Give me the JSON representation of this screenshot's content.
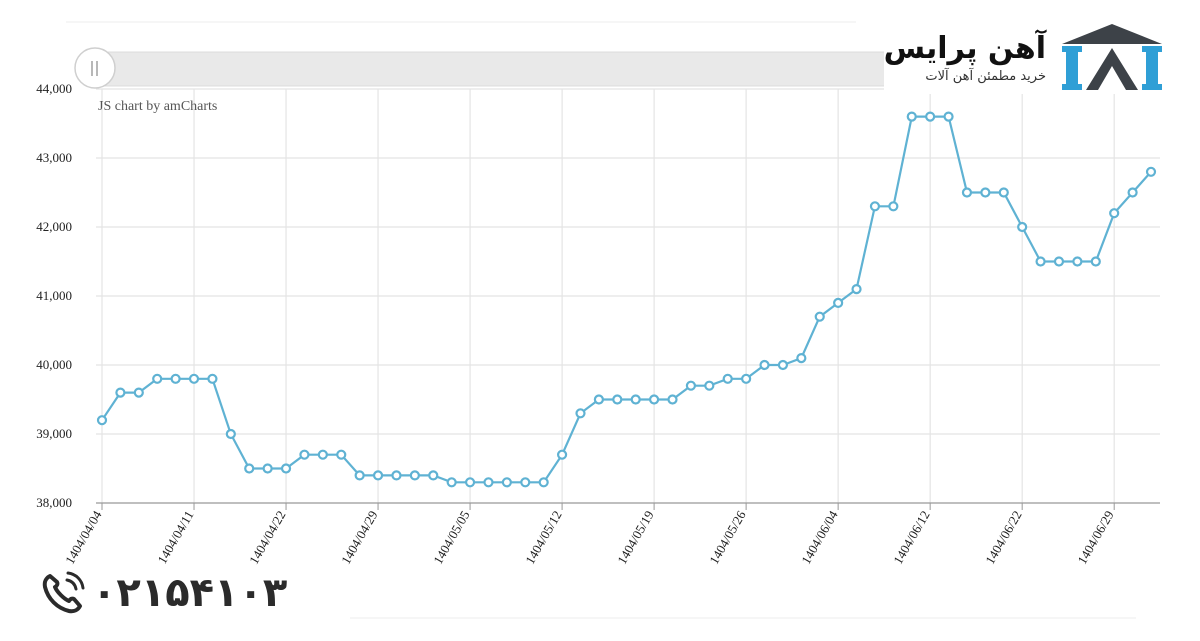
{
  "brand": {
    "name": "آهن پرایس",
    "tagline": "خرید مطمئن آهن آلات"
  },
  "phone": {
    "number": "۰۲۱۵۴۱۰۳"
  },
  "chart_data": {
    "type": "line",
    "credit": "JS chart by amCharts",
    "ylim": [
      38000,
      44000
    ],
    "yticks": [
      "38,000",
      "39,000",
      "40,000",
      "41,000",
      "42,000",
      "43,000",
      "44,000"
    ],
    "xtick_labels": [
      "1404/04/04",
      "1404/04/11",
      "1404/04/22",
      "1404/04/29",
      "1404/05/05",
      "1404/05/12",
      "1404/05/19",
      "1404/05/26",
      "1404/06/04",
      "1404/06/12",
      "1404/06/22",
      "1404/06/29"
    ],
    "xtick_indices": [
      0,
      5,
      10,
      15,
      20,
      25,
      30,
      35,
      40,
      45,
      50,
      55
    ],
    "grid": true,
    "series": [
      {
        "color": "#5fb2d3",
        "values": [
          39200,
          39600,
          39600,
          39800,
          39800,
          39800,
          39800,
          39000,
          38500,
          38500,
          38500,
          38700,
          38700,
          38700,
          38400,
          38400,
          38400,
          38400,
          38400,
          38300,
          38300,
          38300,
          38300,
          38300,
          38300,
          38700,
          39300,
          39500,
          39500,
          39500,
          39500,
          39500,
          39700,
          39700,
          39800,
          39800,
          40000,
          40000,
          40100,
          40700,
          40900,
          41100,
          42300,
          42300,
          43600,
          43600,
          43600,
          42500,
          42500,
          42500,
          42000,
          41500,
          41500,
          41500,
          41500,
          42200,
          42500,
          42800
        ]
      }
    ]
  }
}
